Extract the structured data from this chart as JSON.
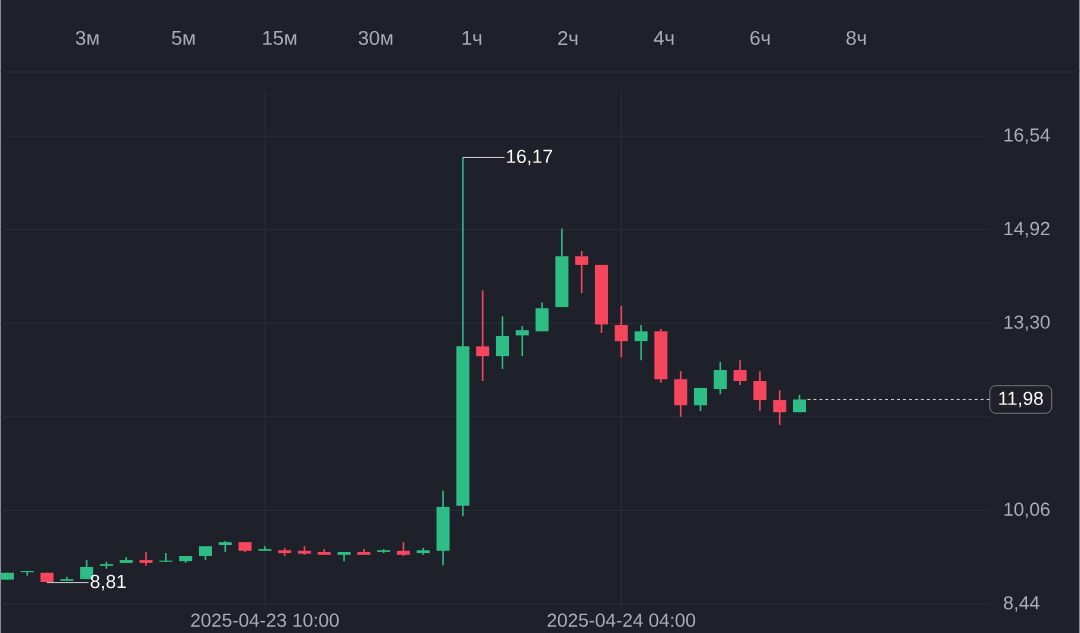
{
  "chart_data": {
    "type": "candlestick",
    "x": [
      "2025-04-22T21:00",
      "2025-04-22T22:00",
      "2025-04-22T23:00",
      "2025-04-23T00:00",
      "2025-04-23T01:00",
      "2025-04-23T02:00",
      "2025-04-23T03:00",
      "2025-04-23T04:00",
      "2025-04-23T05:00",
      "2025-04-23T06:00",
      "2025-04-23T07:00",
      "2025-04-23T08:00",
      "2025-04-23T09:00",
      "2025-04-23T10:00",
      "2025-04-23T11:00",
      "2025-04-23T12:00",
      "2025-04-23T13:00",
      "2025-04-23T14:00",
      "2025-04-23T15:00",
      "2025-04-23T16:00",
      "2025-04-23T17:00",
      "2025-04-23T18:00",
      "2025-04-23T19:00",
      "2025-04-23T20:00",
      "2025-04-23T21:00",
      "2025-04-23T22:00",
      "2025-04-23T23:00",
      "2025-04-24T00:00",
      "2025-04-24T01:00",
      "2025-04-24T02:00",
      "2025-04-24T03:00",
      "2025-04-24T04:00",
      "2025-04-24T05:00",
      "2025-04-24T06:00",
      "2025-04-24T07:00",
      "2025-04-24T08:00",
      "2025-04-24T09:00",
      "2025-04-24T10:00",
      "2025-04-24T11:00",
      "2025-04-24T12:00",
      "2025-04-24T13:00"
    ],
    "ohlc": [
      [
        8.86,
        8.98,
        8.86,
        8.98
      ],
      [
        8.99,
        9.01,
        8.93,
        9.01
      ],
      [
        8.98,
        8.98,
        8.81,
        8.82
      ],
      [
        8.84,
        8.91,
        8.84,
        8.87
      ],
      [
        8.87,
        9.2,
        8.87,
        9.08
      ],
      [
        9.1,
        9.17,
        9.05,
        9.13
      ],
      [
        9.15,
        9.25,
        9.15,
        9.2
      ],
      [
        9.2,
        9.34,
        9.1,
        9.15
      ],
      [
        9.17,
        9.32,
        9.17,
        9.19
      ],
      [
        9.18,
        9.27,
        9.15,
        9.27
      ],
      [
        9.27,
        9.44,
        9.2,
        9.44
      ],
      [
        9.46,
        9.53,
        9.34,
        9.51
      ],
      [
        9.51,
        9.51,
        9.34,
        9.36
      ],
      [
        9.36,
        9.44,
        9.36,
        9.39
      ],
      [
        9.37,
        9.41,
        9.27,
        9.32
      ],
      [
        9.36,
        9.44,
        9.29,
        9.31
      ],
      [
        9.34,
        9.39,
        9.29,
        9.29
      ],
      [
        9.29,
        9.34,
        9.18,
        9.34
      ],
      [
        9.34,
        9.39,
        9.29,
        9.29
      ],
      [
        9.34,
        9.39,
        9.32,
        9.37
      ],
      [
        9.36,
        9.51,
        9.27,
        9.29
      ],
      [
        9.32,
        9.41,
        9.29,
        9.37
      ],
      [
        9.36,
        10.4,
        9.11,
        10.12
      ],
      [
        10.14,
        16.17,
        9.96,
        12.9
      ],
      [
        12.9,
        13.87,
        12.3,
        12.73
      ],
      [
        12.73,
        13.42,
        12.51,
        13.08
      ],
      [
        13.09,
        13.25,
        12.73,
        13.18
      ],
      [
        13.16,
        13.66,
        13.16,
        13.56
      ],
      [
        13.58,
        14.94,
        13.58,
        14.46
      ],
      [
        14.46,
        14.55,
        13.82,
        14.31
      ],
      [
        14.31,
        14.31,
        13.13,
        13.28
      ],
      [
        13.27,
        13.6,
        12.71,
        12.99
      ],
      [
        12.99,
        13.27,
        12.66,
        13.16
      ],
      [
        13.16,
        13.2,
        12.27,
        12.33
      ],
      [
        12.33,
        12.47,
        11.68,
        11.88
      ],
      [
        11.88,
        12.18,
        11.78,
        12.18
      ],
      [
        12.16,
        12.63,
        12.07,
        12.49
      ],
      [
        12.49,
        12.66,
        12.23,
        12.3
      ],
      [
        12.3,
        12.47,
        11.78,
        11.97
      ],
      [
        11.97,
        12.14,
        11.54,
        11.76
      ],
      [
        11.76,
        12.06,
        11.76,
        11.98
      ]
    ],
    "colors": [
      "#2ebd85",
      "#2ebd85",
      "#f6465d",
      "#2ebd85",
      "#2ebd85",
      "#2ebd85",
      "#2ebd85",
      "#f6465d",
      "#2ebd85",
      "#2ebd85",
      "#2ebd85",
      "#2ebd85",
      "#f6465d",
      "#2ebd85",
      "#f6465d",
      "#f6465d",
      "#f6465d",
      "#2ebd85",
      "#f6465d",
      "#2ebd85",
      "#f6465d",
      "#2ebd85",
      "#2ebd85",
      "#2ebd85",
      "#f6465d",
      "#2ebd85",
      "#2ebd85",
      "#2ebd85",
      "#2ebd85",
      "#f6465d",
      "#f6465d",
      "#f6465d",
      "#2ebd85",
      "#f6465d",
      "#f6465d",
      "#2ebd85",
      "#2ebd85",
      "#f6465d",
      "#f6465d",
      "#f6465d",
      "#2ebd85"
    ],
    "xlim": [
      "2025-04-22T20:39",
      "2025-04-24T22:36"
    ],
    "xticks": [
      {
        "value": "2025-04-23T10:00",
        "label": "2025-04-23 10:00"
      },
      {
        "value": "2025-04-24T04:00",
        "label": "2025-04-24 04:00"
      }
    ],
    "ylim": [
      8.37,
      17.33
    ],
    "yticks": [
      {
        "value": 8.44,
        "label": "8,44"
      },
      {
        "value": 10.06,
        "label": "10,06"
      },
      {
        "value": 11.68,
        "label": null
      },
      {
        "value": 13.3,
        "label": "13,30"
      },
      {
        "value": 14.92,
        "label": "14,92"
      },
      {
        "value": 16.54,
        "label": "16,54"
      }
    ],
    "grid": true,
    "ref_lines": [
      {
        "axis": "y",
        "value": 11.98,
        "label": "11,98",
        "color": "#ffffff",
        "line_style": "dashed"
      }
    ],
    "annotations": [
      {
        "text": "16,17",
        "x": "2025-04-23T20:00",
        "y": 16.17
      },
      {
        "text": "8,81",
        "x": "2025-04-22T23:00",
        "y": 8.81
      },
      "3м",
      "5м",
      "15м",
      "30м",
      "1ч",
      "2ч",
      "4ч",
      "6ч",
      "8ч"
    ]
  }
}
